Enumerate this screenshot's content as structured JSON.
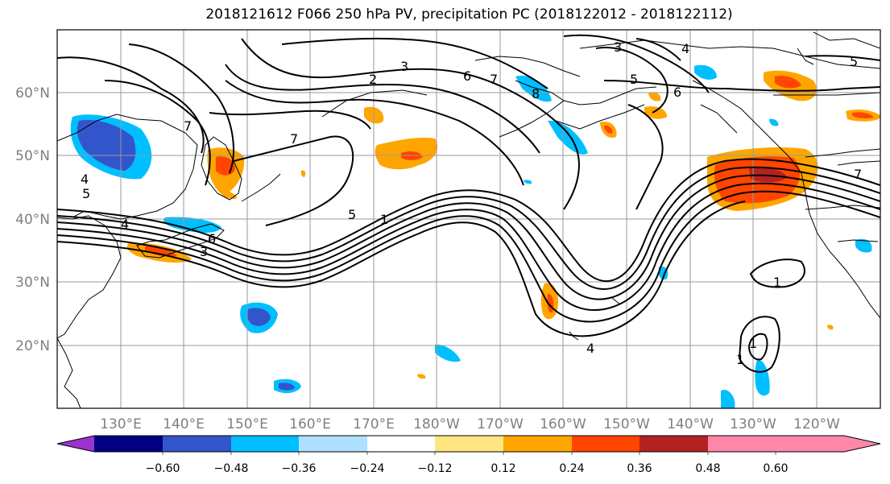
{
  "title": "2018121612 F066 250 hPa PV, precipitation PC (2018122012 - 2018122112)",
  "lat_ticks": [
    "60°N",
    "50°N",
    "40°N",
    "30°N",
    "20°N"
  ],
  "lon_ticks": [
    "130°E",
    "140°E",
    "150°E",
    "160°E",
    "170°E",
    "180°W",
    "170°W",
    "160°W",
    "150°W",
    "140°W",
    "130°W",
    "120°W"
  ],
  "contour_labels": [
    "2",
    "3",
    "6",
    "7",
    "3",
    "8",
    "5",
    "6",
    "5",
    "4",
    "7",
    "4",
    "5",
    "4",
    "6",
    "3",
    "7",
    "5",
    "1",
    "1",
    "4",
    "1",
    "1",
    "7"
  ],
  "colorbar": {
    "ticks": [
      "−0.60",
      "−0.48",
      "−0.36",
      "−0.24",
      "−0.12",
      "0.12",
      "0.24",
      "0.36",
      "0.48",
      "0.60"
    ],
    "colors": [
      "#9933cc",
      "#000080",
      "#3355cc",
      "#00bfff",
      "#b0e0ff",
      "#ffffff",
      "#ffe680",
      "#ffa500",
      "#ff4500",
      "#b22222",
      "#ff88aa"
    ]
  }
}
